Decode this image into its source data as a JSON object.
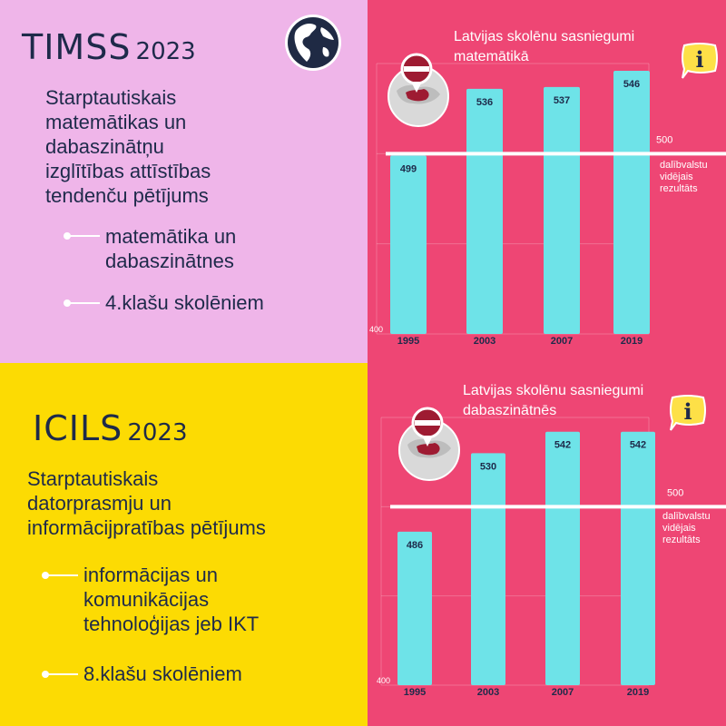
{
  "timss": {
    "title": "TIMSS",
    "year": "2023",
    "subtitle_lines": [
      "Starptautiskais",
      "matemātikas un",
      "dabaszinātņu",
      "izglītības attīstības",
      "tendenču pētījums"
    ],
    "bullets": [
      {
        "lines": [
          "matemātika un",
          "dabaszinātnes"
        ]
      },
      {
        "lines": [
          "4.klašu skolēniem"
        ]
      }
    ]
  },
  "icils": {
    "title": "ICILS",
    "year": "2023",
    "subtitle_lines": [
      "Starptautiskais",
      "datorprasmju un",
      "informācijpratības pētījums"
    ],
    "bullets": [
      {
        "lines": [
          "informācijas un",
          "komunikācijas",
          "tehnoloģijas jeb IKT"
        ]
      },
      {
        "lines": [
          "8.klašu skolēniem"
        ]
      }
    ]
  },
  "colors": {
    "pink_panel": "#efb5e9",
    "yellow_panel": "#fcdb03",
    "chart_bg": "#ee4674",
    "bar": "#6ee3e8",
    "text_dark": "#1e2a4a",
    "info_yellow": "#fde047"
  },
  "icons": [
    "globe-icon",
    "latvia-map-pin-icon",
    "info-icon"
  ],
  "chart_data": [
    {
      "type": "bar",
      "title_lines": [
        "Latvijas skolēnu sasniegumi",
        "matemātikā"
      ],
      "categories": [
        "1995",
        "2003",
        "2007",
        "2019"
      ],
      "values": [
        499,
        536,
        537,
        546
      ],
      "ylim": [
        400,
        550
      ],
      "ymin_label": "400",
      "reference": {
        "value": 500,
        "label": "500",
        "note_lines": [
          "dalībvalstu",
          "vidējais",
          "rezultāts"
        ]
      },
      "grid": true
    },
    {
      "type": "bar",
      "title_lines": [
        "Latvijas skolēnu sasniegumi",
        "dabaszinātnēs"
      ],
      "categories": [
        "1995",
        "2003",
        "2007",
        "2019"
      ],
      "values": [
        486,
        530,
        542,
        542
      ],
      "ylim": [
        400,
        550
      ],
      "ymin_label": "400",
      "reference": {
        "value": 500,
        "label": "500",
        "note_lines": [
          "dalībvalstu",
          "vidējais",
          "rezultāts"
        ]
      },
      "grid": true
    }
  ]
}
